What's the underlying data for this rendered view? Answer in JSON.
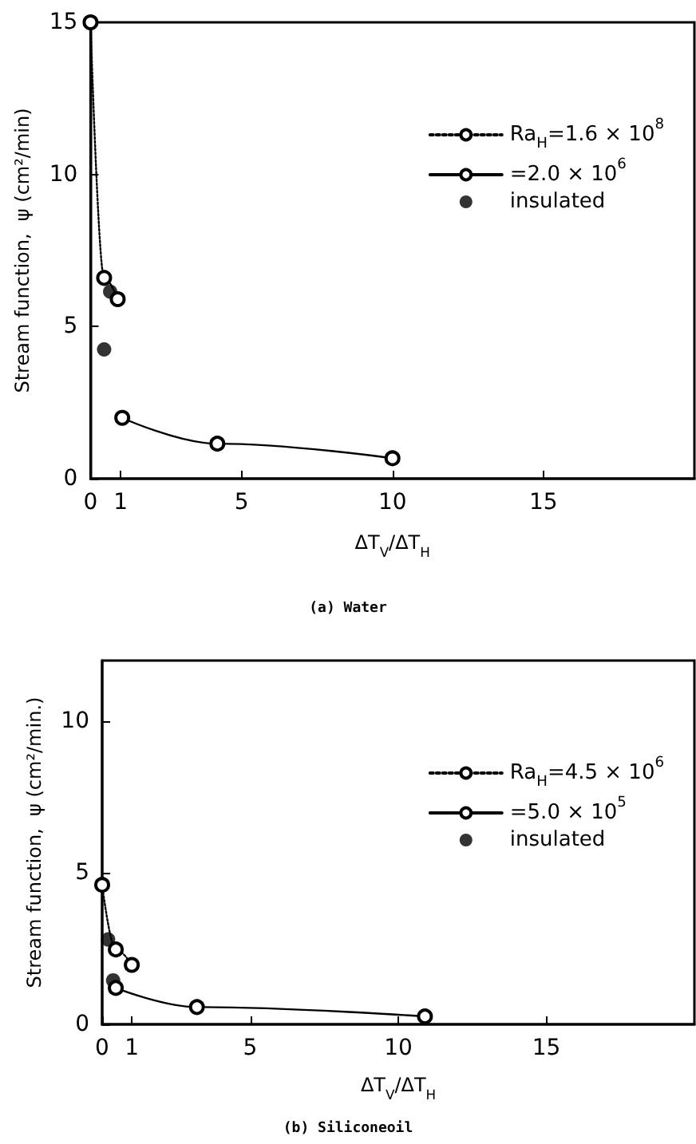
{
  "chart_data": [
    {
      "type": "line",
      "title": "(a) Water",
      "xlabel": "ΔT$_{V}$/ΔT$_{H}$",
      "ylabel": "Stream function,  ψ (cm²/min)",
      "xlim": [
        0,
        20
      ],
      "xticks": [
        0,
        1,
        5,
        10,
        15
      ],
      "ylim": [
        0,
        15
      ],
      "yticks": [
        0,
        5,
        10,
        15
      ],
      "grid": false,
      "legend": "top right",
      "marker": "circle",
      "series": [
        {
          "name": "Ra$_{H}$=1.6 × 10$^{8}$",
          "color": "#000000",
          "line_style": "dotted",
          "x": [
            0,
            0.45,
            0.9
          ],
          "values": [
            15,
            6.6,
            5.9
          ]
        },
        {
          "name": "=2.0 × 10$^{6}$",
          "color": "#000000",
          "line_style": "solid",
          "x": [
            1.05,
            4.2,
            10.0
          ],
          "values": [
            2.0,
            1.15,
            0.67
          ]
        },
        {
          "name": "insulated",
          "type": "scatter",
          "color": "#000000",
          "x": [
            0.65,
            0.45
          ],
          "values": [
            6.15,
            4.25
          ]
        }
      ]
    },
    {
      "type": "line",
      "title": "(b) Siliconeoil",
      "xlabel": "ΔT$_{V}$/ΔT$_{H}$",
      "ylabel": "Stream function,  ψ (cm²/min.)",
      "xlim": [
        0,
        20
      ],
      "xticks": [
        0,
        1,
        5,
        10,
        15
      ],
      "ylim": [
        0,
        12
      ],
      "yticks": [
        0,
        5,
        10
      ],
      "grid": false,
      "legend": "top right",
      "marker": "circle",
      "series": [
        {
          "name": "Ra$_{H}$=4.5 × 10$^{6}$",
          "color": "#000000",
          "line_style": "dotted",
          "x": [
            0,
            0.46,
            1.0
          ],
          "values": [
            4.6,
            2.47,
            1.96
          ]
        },
        {
          "name": "=5.0 × 10$^{5}$",
          "color": "#000000",
          "line_style": "solid",
          "x": [
            0.46,
            3.2,
            10.9
          ],
          "values": [
            1.2,
            0.57,
            0.26
          ]
        },
        {
          "name": "insulated",
          "type": "scatter",
          "color": "#000000",
          "x": [
            0.2,
            0.37
          ],
          "values": [
            2.8,
            1.45
          ]
        }
      ]
    }
  ]
}
